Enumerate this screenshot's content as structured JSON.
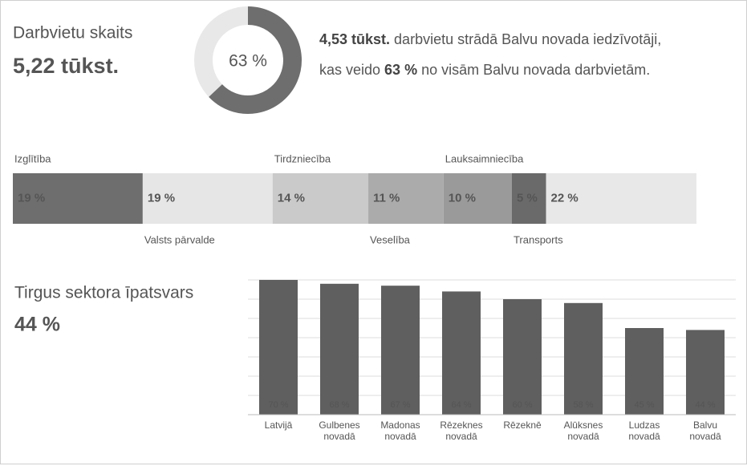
{
  "summary": {
    "label": "Darbvietu skaits",
    "value": "5,22 tūkst."
  },
  "statement": [
    "4,53 tūkst.",
    " darbvietu strādā Balvu novada iedzīvotāji, kas veido ",
    "63 %",
    " no visām Balvu novada darbvietām."
  ],
  "chart_data": [
    {
      "type": "donut",
      "values": [
        63
      ],
      "value_labels": [
        "63 %"
      ],
      "ylim": [
        0,
        100
      ],
      "color": "#6e6e6e",
      "track_color": "#e8e8e8"
    },
    {
      "type": "stacked_bar",
      "xlim": [
        0,
        100
      ],
      "series": [
        {
          "name": "Izglītība",
          "values": [
            19
          ],
          "value_labels": [
            "19 %"
          ],
          "color": "#6e6e6e"
        },
        {
          "name": "Valsts pārvalde",
          "values": [
            19
          ],
          "value_labels": [
            "19 %"
          ],
          "color": "#e6e6e6"
        },
        {
          "name": "Tirdzniecība",
          "values": [
            14
          ],
          "value_labels": [
            "14 %"
          ],
          "color": "#cacaca"
        },
        {
          "name": "Veselība",
          "values": [
            11
          ],
          "value_labels": [
            "11 %"
          ],
          "color": "#ababab"
        },
        {
          "name": "Lauksaimniecība",
          "values": [
            10
          ],
          "value_labels": [
            "10 %"
          ],
          "color": "#9a9a9a"
        },
        {
          "name": "Transports",
          "values": [
            5
          ],
          "value_labels": [
            "5 %"
          ],
          "color": "#6a6a6a"
        },
        {
          "name": null,
          "values": [
            22
          ],
          "value_labels": [
            "22 %"
          ],
          "color": "#e8e8e8"
        }
      ]
    },
    {
      "type": "bar",
      "title": "Tirgus sektora īpatsvars",
      "subtitle": "44 %",
      "categories": [
        "Latvijā",
        "Gulbenes\nnovadā",
        "Madonas\nnovadā",
        "Rēzeknes\nnovadā",
        "Rēzeknē",
        "Alūksnes\nnovadā",
        "Ludzas\nnovadā",
        "Balvu\nnovadā"
      ],
      "values": [
        70,
        68,
        67,
        64,
        60,
        58,
        45,
        44
      ],
      "value_labels": [
        "70 %",
        "68 %",
        "67 %",
        "64 %",
        "60 %",
        "58 %",
        "45 %",
        "44 %"
      ],
      "color": "#5f5f5f",
      "ylim": [
        0,
        70
      ],
      "yticks": [
        0,
        10,
        20,
        30,
        40,
        50,
        60,
        70
      ],
      "grid": true
    }
  ]
}
